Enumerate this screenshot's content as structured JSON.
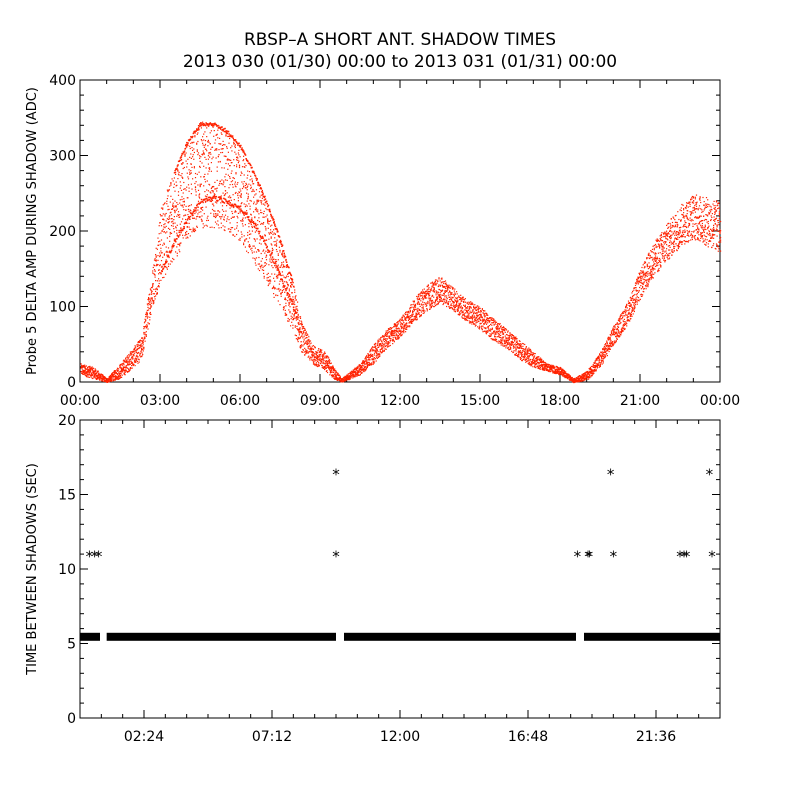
{
  "title": "RBSP–A SHORT ANT. SHADOW TIMES",
  "subtitle": "2013 030 (01/30) 00:00 to 2013 031 (01/31) 00:00",
  "colors": {
    "series_top": "#ff2200",
    "series_bottom": "#000000",
    "axes": "#000000"
  },
  "chart_data": [
    {
      "type": "scatter",
      "ylabel": "Probe 5 DELTA AMP DURING SHADOW (ADC)",
      "xlabel": "",
      "x_unit": "hours",
      "xlim": [
        0,
        24
      ],
      "ylim": [
        0,
        400
      ],
      "x_tick_values": [
        0,
        3,
        6,
        9,
        12,
        15,
        18,
        21,
        24
      ],
      "x_tick_labels": [
        "00:00",
        "03:00",
        "06:00",
        "09:00",
        "12:00",
        "15:00",
        "18:00",
        "21:00",
        "00:00"
      ],
      "y_ticks": [
        0,
        100,
        200,
        300,
        400
      ],
      "series": [
        {
          "color": "#ff2200",
          "envelope_upper": [
            [
              0.0,
              25
            ],
            [
              0.5,
              20
            ],
            [
              1.0,
              5
            ],
            [
              1.5,
              25
            ],
            [
              2.3,
              60
            ],
            [
              2.7,
              150
            ],
            [
              3.0,
              230
            ],
            [
              3.5,
              280
            ],
            [
              4.0,
              320
            ],
            [
              4.5,
              345
            ],
            [
              5.0,
              345
            ],
            [
              5.5,
              335
            ],
            [
              6.0,
              315
            ],
            [
              6.5,
              280
            ],
            [
              7.0,
              240
            ],
            [
              7.5,
              190
            ],
            [
              8.0,
              130
            ],
            [
              8.3,
              80
            ],
            [
              8.7,
              50
            ],
            [
              9.2,
              40
            ],
            [
              9.5,
              20
            ],
            [
              9.8,
              5
            ],
            [
              10.5,
              25
            ],
            [
              11.0,
              50
            ],
            [
              11.5,
              70
            ],
            [
              12.0,
              85
            ],
            [
              12.5,
              110
            ],
            [
              13.0,
              130
            ],
            [
              13.5,
              140
            ],
            [
              14.0,
              125
            ],
            [
              14.5,
              110
            ],
            [
              15.0,
              100
            ],
            [
              15.5,
              85
            ],
            [
              16.0,
              70
            ],
            [
              16.5,
              55
            ],
            [
              17.0,
              40
            ],
            [
              17.5,
              25
            ],
            [
              18.0,
              20
            ],
            [
              18.5,
              5
            ],
            [
              19.0,
              15
            ],
            [
              19.5,
              40
            ],
            [
              20.0,
              75
            ],
            [
              20.5,
              105
            ],
            [
              21.0,
              150
            ],
            [
              21.5,
              185
            ],
            [
              22.0,
              210
            ],
            [
              22.5,
              235
            ],
            [
              23.0,
              250
            ],
            [
              23.5,
              245
            ],
            [
              24.0,
              240
            ]
          ],
          "envelope_lower": [
            [
              0.0,
              10
            ],
            [
              0.5,
              5
            ],
            [
              1.0,
              0
            ],
            [
              1.5,
              5
            ],
            [
              2.3,
              30
            ],
            [
              2.7,
              100
            ],
            [
              3.0,
              130
            ],
            [
              3.5,
              160
            ],
            [
              4.0,
              190
            ],
            [
              4.5,
              205
            ],
            [
              5.0,
              205
            ],
            [
              5.5,
              200
            ],
            [
              6.0,
              185
            ],
            [
              6.5,
              160
            ],
            [
              7.0,
              130
            ],
            [
              7.5,
              95
            ],
            [
              8.0,
              65
            ],
            [
              8.3,
              40
            ],
            [
              8.7,
              25
            ],
            [
              9.2,
              15
            ],
            [
              9.5,
              5
            ],
            [
              9.8,
              0
            ],
            [
              10.5,
              10
            ],
            [
              11.0,
              25
            ],
            [
              11.5,
              45
            ],
            [
              12.0,
              60
            ],
            [
              12.5,
              80
            ],
            [
              13.0,
              95
            ],
            [
              13.5,
              105
            ],
            [
              14.0,
              95
            ],
            [
              14.5,
              80
            ],
            [
              15.0,
              70
            ],
            [
              15.5,
              55
            ],
            [
              16.0,
              45
            ],
            [
              16.5,
              30
            ],
            [
              17.0,
              20
            ],
            [
              17.5,
              15
            ],
            [
              18.0,
              10
            ],
            [
              18.5,
              0
            ],
            [
              19.0,
              3
            ],
            [
              19.5,
              20
            ],
            [
              20.0,
              50
            ],
            [
              20.5,
              75
            ],
            [
              21.0,
              110
            ],
            [
              21.5,
              140
            ],
            [
              22.0,
              160
            ],
            [
              22.5,
              180
            ],
            [
              23.0,
              190
            ],
            [
              23.5,
              180
            ],
            [
              24.0,
              170
            ]
          ],
          "dense_band": [
            [
              3.0,
              145
            ],
            [
              3.5,
              185
            ],
            [
              4.0,
              215
            ],
            [
              4.5,
              240
            ],
            [
              5.0,
              245
            ],
            [
              5.5,
              240
            ],
            [
              6.0,
              230
            ],
            [
              6.5,
              210
            ],
            [
              7.0,
              180
            ],
            [
              7.5,
              140
            ],
            [
              8.0,
              100
            ],
            [
              8.3,
              60
            ]
          ]
        }
      ]
    },
    {
      "type": "scatter",
      "ylabel": "TIME BETWEEN SHADOWS (SEC)",
      "xlabel": "",
      "x_unit": "hours",
      "xlim": [
        0,
        24
      ],
      "ylim": [
        0,
        20
      ],
      "x_tick_values": [
        2.4,
        7.2,
        12.0,
        16.8,
        21.6
      ],
      "x_tick_labels": [
        "02:24",
        "07:12",
        "12:00",
        "16:48",
        "21:36"
      ],
      "y_ticks": [
        0,
        5,
        10,
        15,
        20
      ],
      "baseline_value": 5.45,
      "baseline_segments": [
        [
          0.0,
          0.75
        ],
        [
          1.0,
          9.6
        ],
        [
          9.9,
          18.6
        ],
        [
          18.9,
          24.0
        ]
      ],
      "series": [
        {
          "color": "#000000",
          "marker": "*",
          "points": [
            [
              0.35,
              10.9
            ],
            [
              0.55,
              10.9
            ],
            [
              0.7,
              10.9
            ],
            [
              9.6,
              16.4
            ],
            [
              9.6,
              10.9
            ],
            [
              18.65,
              10.9
            ],
            [
              19.05,
              10.9
            ],
            [
              19.1,
              10.9
            ],
            [
              19.9,
              16.4
            ],
            [
              20.0,
              10.9
            ],
            [
              22.5,
              10.9
            ],
            [
              22.65,
              10.9
            ],
            [
              22.75,
              10.9
            ],
            [
              23.6,
              16.4
            ],
            [
              23.7,
              10.9
            ]
          ]
        }
      ]
    }
  ]
}
